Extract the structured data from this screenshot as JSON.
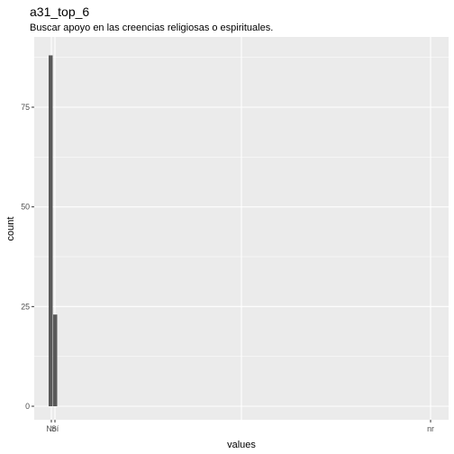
{
  "chart_data": {
    "type": "bar",
    "title": "a31_top_6",
    "subtitle": "Buscar apoyo en las creencias religiosas o espirituales.",
    "xlabel": "values",
    "ylabel": "count",
    "x_tick_labels": [
      "No",
      "Sí",
      "nr"
    ],
    "y_ticks": [
      0,
      25,
      50,
      75
    ],
    "ylim": [
      0,
      92
    ],
    "bars": [
      {
        "category": "No",
        "value": 88
      },
      {
        "category": "Sí",
        "value": 23
      }
    ],
    "bar_color": "#595959",
    "panel_color": "#ebebeb",
    "grid": true
  }
}
